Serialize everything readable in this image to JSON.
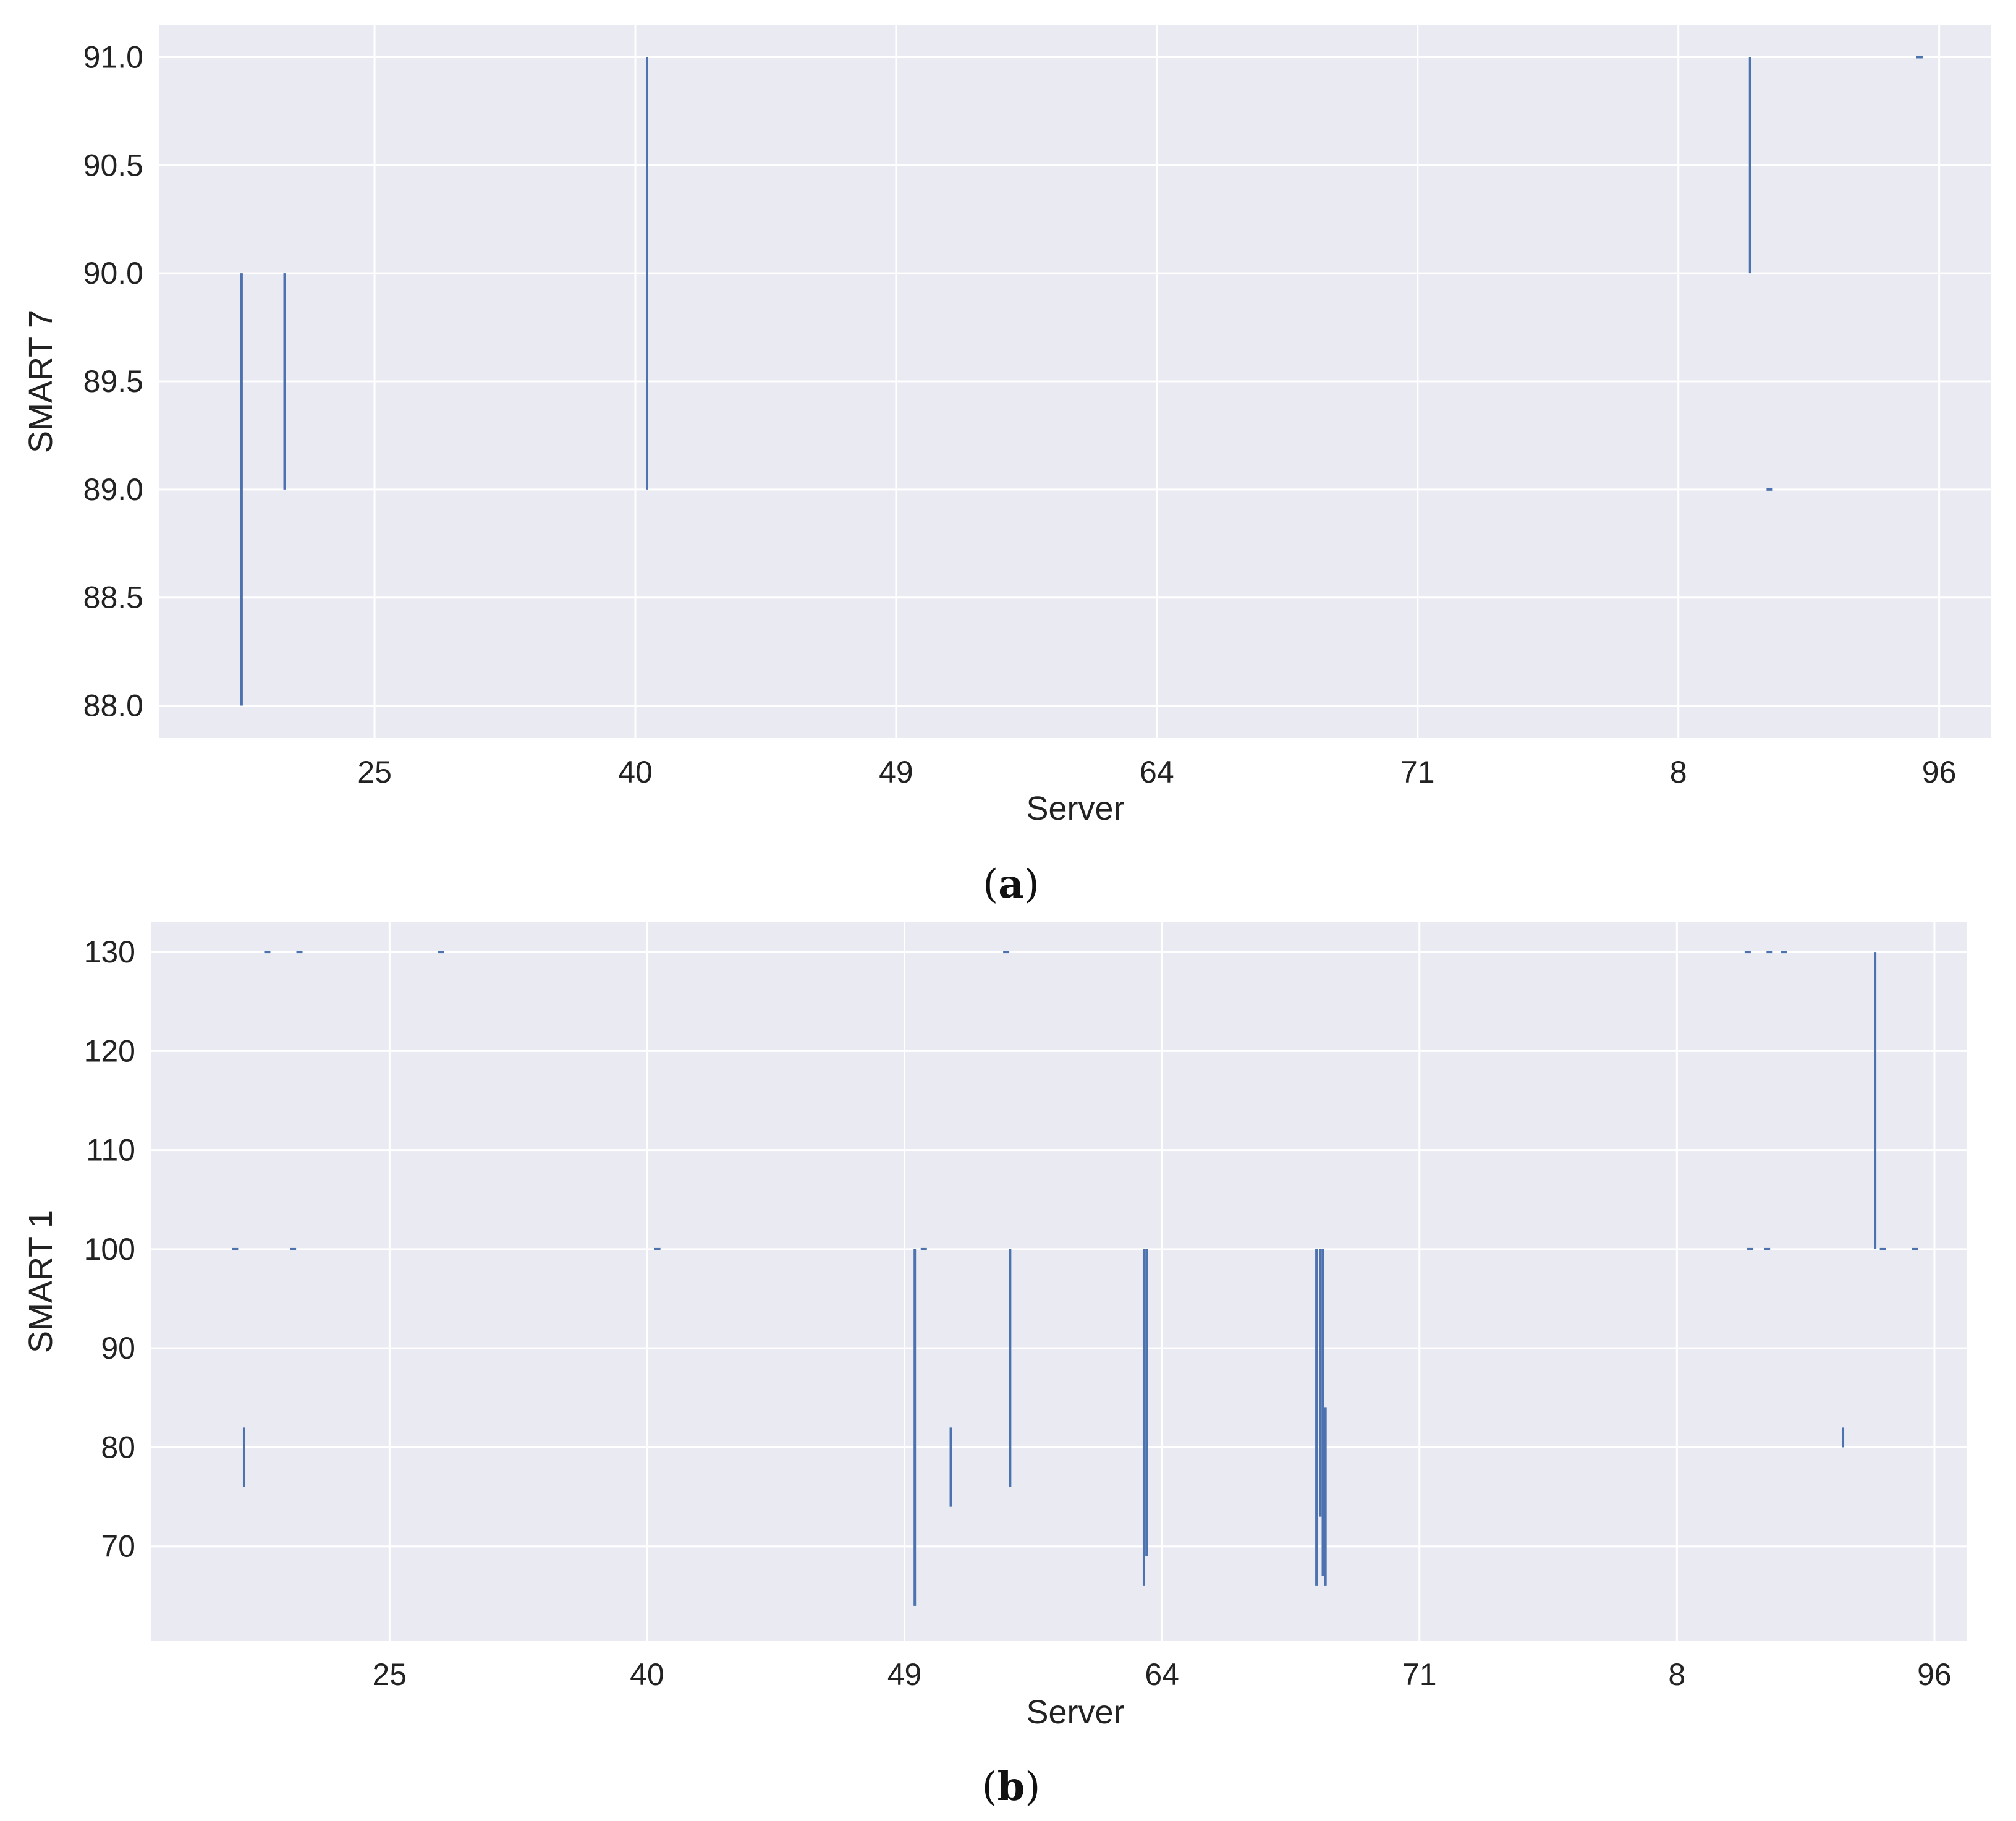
{
  "chart_data": [
    {
      "type": "line",
      "panel": "(a)",
      "caption": {
        "open": "(",
        "letter": "a",
        "close": ")"
      },
      "xlabel": "Server",
      "ylabel": "SMART 7",
      "x_tick_labels": [
        "25",
        "40",
        "49",
        "64",
        "71",
        "8",
        "96"
      ],
      "x_tick_positions": [
        1,
        3,
        5,
        7,
        9,
        11,
        13
      ],
      "xlim": [
        -0.65,
        13.4
      ],
      "ylim": [
        87.85,
        91.15
      ],
      "y_ticks": [
        88.0,
        88.5,
        89.0,
        89.5,
        90.0,
        90.5,
        91.0
      ],
      "y_tick_labels": [
        "88.0",
        "88.5",
        "89.0",
        "89.5",
        "90.0",
        "90.5",
        "91.0"
      ],
      "grid": true,
      "color": "#4c72b0",
      "segments": [
        {
          "x": -0.02,
          "y_from": 88.0,
          "y_to": 90.0
        },
        {
          "x": 0.31,
          "y_from": 89.0,
          "y_to": 90.0
        },
        {
          "x": 3.09,
          "y_from": 89.0,
          "y_to": 91.0
        },
        {
          "x": 11.55,
          "y_from": 90.0,
          "y_to": 91.0
        },
        {
          "x": 11.7,
          "y_from": 89.0,
          "y_to": 89.0
        },
        {
          "x": 12.85,
          "y_from": 91.0,
          "y_to": 91.0
        }
      ]
    },
    {
      "type": "line",
      "panel": "(b)",
      "caption": {
        "open": "(",
        "letter": "b",
        "close": ")"
      },
      "xlabel": "Server",
      "ylabel": "SMART 1",
      "x_tick_labels": [
        "25",
        "40",
        "49",
        "64",
        "71",
        "8",
        "96"
      ],
      "x_tick_positions": [
        1,
        3,
        5,
        7,
        9,
        11,
        13
      ],
      "xlim": [
        -0.85,
        13.25
      ],
      "ylim": [
        60.5,
        133.0
      ],
      "y_ticks": [
        70,
        80,
        90,
        100,
        110,
        120,
        130
      ],
      "y_tick_labels": [
        "70",
        "80",
        "90",
        "100",
        "110",
        "120",
        "130"
      ],
      "grid": true,
      "color": "#4c72b0",
      "segments": [
        {
          "x": -0.2,
          "y_from": 100,
          "y_to": 100
        },
        {
          "x": -0.13,
          "y_from": 76,
          "y_to": 82
        },
        {
          "x": 0.05,
          "y_from": 130,
          "y_to": 130
        },
        {
          "x": 0.25,
          "y_from": 100,
          "y_to": 100
        },
        {
          "x": 0.3,
          "y_from": 130,
          "y_to": 130
        },
        {
          "x": 1.4,
          "y_from": 130,
          "y_to": 130
        },
        {
          "x": 3.08,
          "y_from": 100,
          "y_to": 100
        },
        {
          "x": 5.08,
          "y_from": 64,
          "y_to": 100
        },
        {
          "x": 5.15,
          "y_from": 100,
          "y_to": 100
        },
        {
          "x": 5.36,
          "y_from": 74,
          "y_to": 82
        },
        {
          "x": 5.79,
          "y_from": 130,
          "y_to": 130
        },
        {
          "x": 5.82,
          "y_from": 76,
          "y_to": 100
        },
        {
          "x": 6.86,
          "y_from": 66,
          "y_to": 100
        },
        {
          "x": 6.88,
          "y_from": 69,
          "y_to": 100
        },
        {
          "x": 8.2,
          "y_from": 66,
          "y_to": 100
        },
        {
          "x": 8.23,
          "y_from": 73,
          "y_to": 100
        },
        {
          "x": 8.25,
          "y_from": 67,
          "y_to": 100
        },
        {
          "x": 8.27,
          "y_from": 66,
          "y_to": 84
        },
        {
          "x": 11.55,
          "y_from": 130,
          "y_to": 130
        },
        {
          "x": 11.57,
          "y_from": 100,
          "y_to": 100
        },
        {
          "x": 11.7,
          "y_from": 100,
          "y_to": 100
        },
        {
          "x": 11.72,
          "y_from": 130,
          "y_to": 130
        },
        {
          "x": 11.83,
          "y_from": 130,
          "y_to": 130
        },
        {
          "x": 12.29,
          "y_from": 80,
          "y_to": 82
        },
        {
          "x": 12.54,
          "y_from": 100,
          "y_to": 130
        },
        {
          "x": 12.6,
          "y_from": 100,
          "y_to": 100
        },
        {
          "x": 12.85,
          "y_from": 100,
          "y_to": 100
        }
      ]
    }
  ]
}
